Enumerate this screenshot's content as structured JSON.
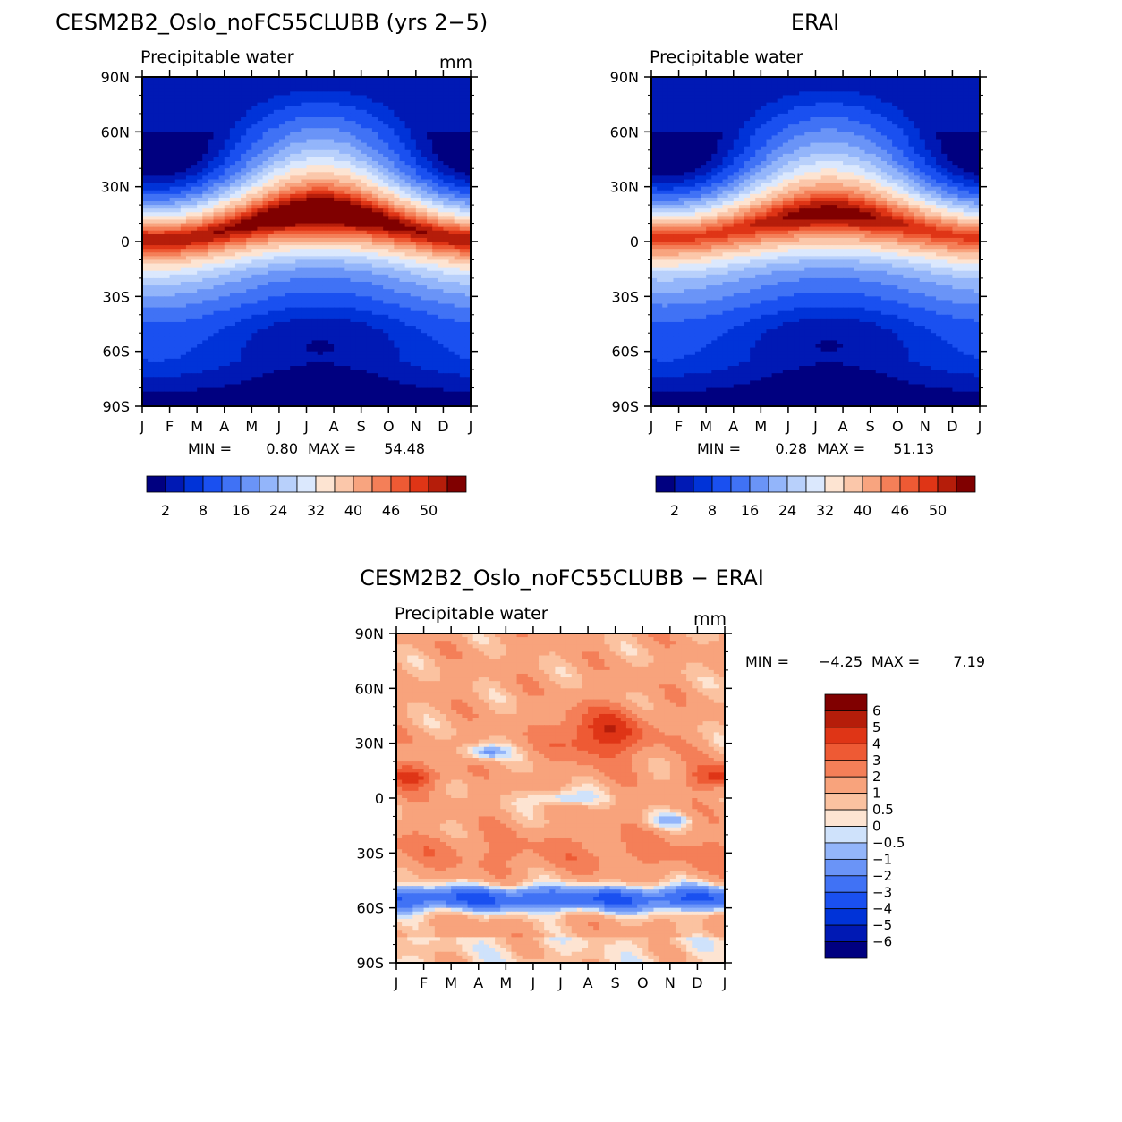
{
  "chart_data": [
    {
      "type": "heatmap",
      "title": "CESM2B2_Oslo_noFC55CLUBB (yrs 2−5)",
      "subtitle": "Precipitable water",
      "units": "mm",
      "x_labels": [
        "J",
        "F",
        "M",
        "A",
        "M",
        "J",
        "J",
        "A",
        "S",
        "O",
        "N",
        "D",
        "J"
      ],
      "y_labels": [
        "90N",
        "60N",
        "30N",
        "0",
        "30S",
        "60S",
        "90S"
      ],
      "ylim": [
        -90,
        90
      ],
      "stats": {
        "min_label": "MIN =",
        "min_value": "0.80",
        "max_label": "MAX =",
        "max_value": "54.48"
      },
      "colorbar_labels": [
        "2",
        "8",
        "16",
        "24",
        "32",
        "40",
        "46",
        "50"
      ],
      "params": {
        "eq_peak": 53,
        "itcz_amp": 7,
        "polar_n": 4,
        "polar_s": 1.2,
        "seasonal": 9
      }
    },
    {
      "type": "heatmap",
      "title": "ERAI",
      "subtitle": "Precipitable water",
      "units": "",
      "x_labels": [
        "J",
        "F",
        "M",
        "A",
        "M",
        "J",
        "J",
        "A",
        "S",
        "O",
        "N",
        "D",
        "J"
      ],
      "y_labels": [
        "90N",
        "60N",
        "30N",
        "0",
        "30S",
        "60S",
        "90S"
      ],
      "ylim": [
        -90,
        90
      ],
      "stats": {
        "min_label": "MIN =",
        "min_value": "0.28",
        "max_label": "MAX =",
        "max_value": "51.13"
      },
      "colorbar_labels": [
        "2",
        "8",
        "16",
        "24",
        "32",
        "40",
        "46",
        "50"
      ],
      "params": {
        "eq_peak": 50,
        "itcz_amp": 6,
        "polar_n": 3,
        "polar_s": 0.6,
        "seasonal": 9
      }
    },
    {
      "type": "heatmap",
      "title": "CESM2B2_Oslo_noFC55CLUBB − ERAI",
      "subtitle": "Precipitable water",
      "units": "mm",
      "x_labels": [
        "J",
        "F",
        "M",
        "A",
        "M",
        "J",
        "J",
        "A",
        "S",
        "O",
        "N",
        "D",
        "J"
      ],
      "y_labels": [
        "90N",
        "60N",
        "30N",
        "0",
        "30S",
        "60S",
        "90S"
      ],
      "ylim": [
        -90,
        90
      ],
      "stats": {
        "min_label": "MIN =",
        "min_value": "−4.25",
        "max_label": "MAX =",
        "max_value": "7.19"
      },
      "colorbar_labels": [
        "6",
        "5",
        "4",
        "3",
        "2",
        "1",
        "0.5",
        "0",
        "−0.5",
        "−1",
        "−2",
        "−3",
        "−4",
        "−5",
        "−6"
      ]
    }
  ],
  "colors": {
    "seq": [
      "#000080",
      "#0019b4",
      "#0033d8",
      "#1a50f0",
      "#4072f5",
      "#6a94f7",
      "#93b5fa",
      "#b8d0fb",
      "#dbe8fd",
      "#fde4d2",
      "#fbc7aa",
      "#f8a47f",
      "#f47f58",
      "#ee5a34",
      "#df3516",
      "#b51d0a",
      "#800000"
    ],
    "diff": [
      "#000080",
      "#0019b4",
      "#0033d8",
      "#1a50f0",
      "#4072f5",
      "#6a94f7",
      "#93b5fa",
      "#cfe2fb",
      "#fde4d2",
      "#fbc2a0",
      "#f8a37c",
      "#f47f58",
      "#ee5a34",
      "#df3516",
      "#b51d0a",
      "#800000"
    ]
  }
}
